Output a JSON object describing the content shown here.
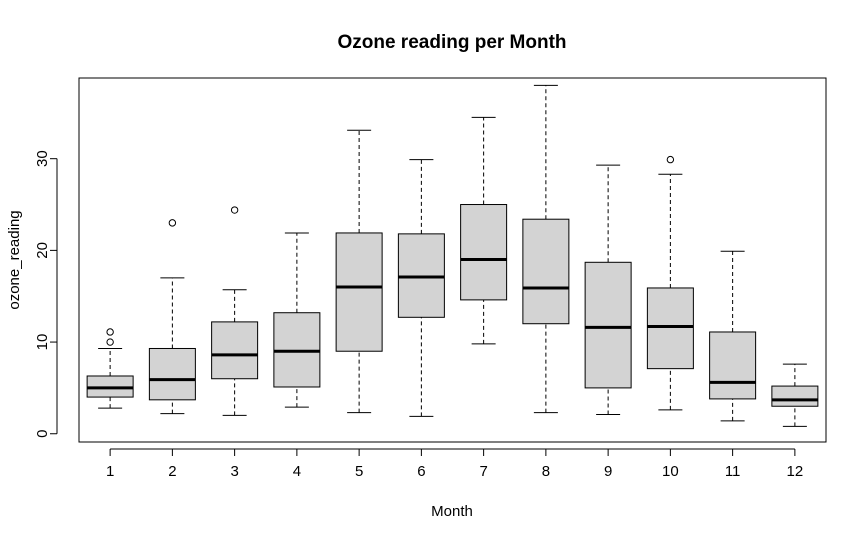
{
  "chart_data": {
    "type": "boxplot",
    "title": "Ozone reading per Month",
    "xlabel": "Month",
    "ylabel": "ozone_reading",
    "categories": [
      "1",
      "2",
      "3",
      "4",
      "5",
      "6",
      "7",
      "8",
      "9",
      "10",
      "11",
      "12"
    ],
    "yticks": [
      0,
      10,
      20,
      30
    ],
    "ylim": [
      -0.9,
      38.8
    ],
    "box_fill": "#d3d3d3",
    "boxes": [
      {
        "category": "1",
        "whisker_low": 2.8,
        "q1": 4.0,
        "median": 5.0,
        "q3": 6.3,
        "whisker_high": 9.3,
        "outliers": [
          10.0,
          11.1
        ]
      },
      {
        "category": "2",
        "whisker_low": 2.2,
        "q1": 3.7,
        "median": 5.9,
        "q3": 9.3,
        "whisker_high": 17.0,
        "outliers": [
          23.0
        ]
      },
      {
        "category": "3",
        "whisker_low": 2.0,
        "q1": 6.0,
        "median": 8.6,
        "q3": 12.2,
        "whisker_high": 15.7,
        "outliers": [
          24.4
        ]
      },
      {
        "category": "4",
        "whisker_low": 2.9,
        "q1": 5.1,
        "median": 9.0,
        "q3": 13.2,
        "whisker_high": 21.9,
        "outliers": []
      },
      {
        "category": "5",
        "whisker_low": 2.3,
        "q1": 9.0,
        "median": 16.0,
        "q3": 21.9,
        "whisker_high": 33.1,
        "outliers": []
      },
      {
        "category": "6",
        "whisker_low": 1.9,
        "q1": 12.7,
        "median": 17.1,
        "q3": 21.8,
        "whisker_high": 29.9,
        "outliers": []
      },
      {
        "category": "7",
        "whisker_low": 9.8,
        "q1": 14.6,
        "median": 19.0,
        "q3": 25.0,
        "whisker_high": 34.5,
        "outliers": []
      },
      {
        "category": "8",
        "whisker_low": 2.3,
        "q1": 12.0,
        "median": 15.9,
        "q3": 23.4,
        "whisker_high": 38.0,
        "outliers": []
      },
      {
        "category": "9",
        "whisker_low": 2.1,
        "q1": 5.0,
        "median": 11.6,
        "q3": 18.7,
        "whisker_high": 29.3,
        "outliers": []
      },
      {
        "category": "10",
        "whisker_low": 2.6,
        "q1": 7.1,
        "median": 11.7,
        "q3": 15.9,
        "whisker_high": 28.3,
        "outliers": [
          29.9
        ]
      },
      {
        "category": "11",
        "whisker_low": 1.4,
        "q1": 3.8,
        "median": 5.6,
        "q3": 11.1,
        "whisker_high": 19.9,
        "outliers": []
      },
      {
        "category": "12",
        "whisker_low": 0.8,
        "q1": 3.0,
        "median": 3.7,
        "q3": 5.2,
        "whisker_high": 7.6,
        "outliers": []
      }
    ]
  }
}
